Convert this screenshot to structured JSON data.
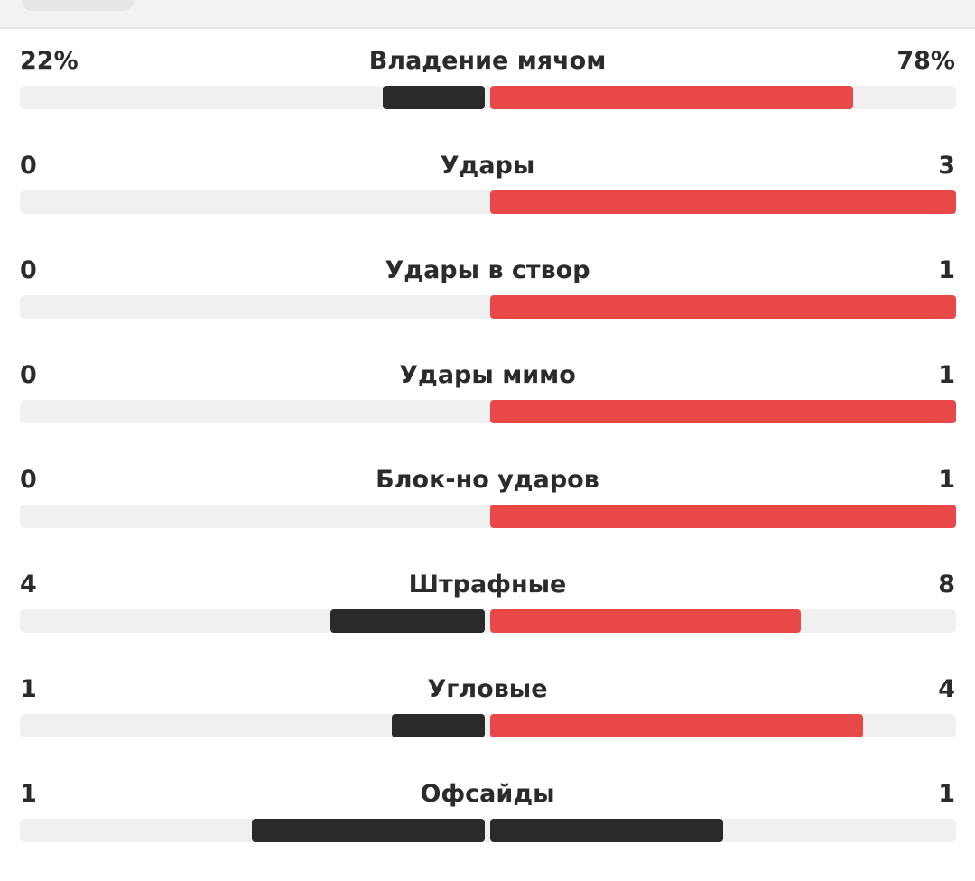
{
  "colors": {
    "home": "#2a2a2a",
    "away": "#e84848",
    "track": "#f0f0f0",
    "text": "#2b2b2b"
  },
  "stats": [
    {
      "name": "Владение мячом",
      "home": "22%",
      "away": "78%",
      "home_fill": 0.22,
      "away_fill": 0.78
    },
    {
      "name": "Удары",
      "home": "0",
      "away": "3",
      "home_fill": 0.0,
      "away_fill": 1.0
    },
    {
      "name": "Удары в створ",
      "home": "0",
      "away": "1",
      "home_fill": 0.0,
      "away_fill": 1.0
    },
    {
      "name": "Удары мимо",
      "home": "0",
      "away": "1",
      "home_fill": 0.0,
      "away_fill": 1.0
    },
    {
      "name": "Блок-но ударов",
      "home": "0",
      "away": "1",
      "home_fill": 0.0,
      "away_fill": 1.0
    },
    {
      "name": "Штрафные",
      "home": "4",
      "away": "8",
      "home_fill": 0.333,
      "away_fill": 0.667
    },
    {
      "name": "Угловые",
      "home": "1",
      "away": "4",
      "home_fill": 0.2,
      "away_fill": 0.8
    },
    {
      "name": "Офсайды",
      "home": "1",
      "away": "1",
      "home_fill": 0.5,
      "away_fill": 0.5
    }
  ]
}
